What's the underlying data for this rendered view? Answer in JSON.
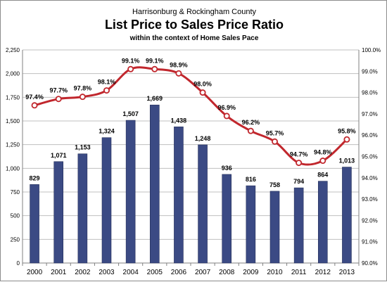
{
  "chart_data": {
    "type": "bar+line",
    "supertitle": "Harrisonburg & Rockingham County",
    "title": "List Price to Sales Price Ratio",
    "subtitle": "within the context of Home Sales Pace",
    "categories": [
      "2000",
      "2001",
      "2002",
      "2003",
      "2004",
      "2005",
      "2006",
      "2007",
      "2008",
      "2009",
      "2010",
      "2011",
      "2012",
      "2013"
    ],
    "series": [
      {
        "type": "bar",
        "axis": "left",
        "values": [
          829,
          1071,
          1153,
          1324,
          1507,
          1669,
          1438,
          1248,
          936,
          816,
          758,
          794,
          864,
          1013
        ],
        "labels": [
          "829",
          "1,071",
          "1,153",
          "1,324",
          "1,507",
          "1,669",
          "1,438",
          "1,248",
          "936",
          "816",
          "758",
          "794",
          "864",
          "1,013"
        ],
        "color": "#3b4a84"
      },
      {
        "type": "line",
        "axis": "right",
        "values": [
          97.4,
          97.7,
          97.8,
          98.1,
          99.1,
          99.1,
          98.9,
          98.0,
          96.9,
          96.2,
          95.7,
          94.7,
          94.8,
          95.8
        ],
        "labels": [
          "97.4%",
          "97.7%",
          "97.8%",
          "98.1%",
          "99.1%",
          "99.1%",
          "98.9%",
          "98.0%",
          "96.9%",
          "96.2%",
          "95.7%",
          "94.7%",
          "94.8%",
          "95.8%"
        ],
        "color": "#c1272d",
        "smooth": true
      }
    ],
    "y_left": {
      "lim": [
        0,
        2250
      ],
      "ticks": [
        0,
        250,
        500,
        750,
        1000,
        1250,
        1500,
        1750,
        2000,
        2250
      ],
      "tick_labels": [
        "0",
        "250",
        "500",
        "750",
        "1,000",
        "1,250",
        "1,500",
        "1,750",
        "2,000",
        "2,250"
      ]
    },
    "y_right": {
      "lim": [
        90.0,
        100.0
      ],
      "ticks": [
        90,
        91,
        92,
        93,
        94,
        95,
        96,
        97,
        98,
        99,
        100
      ],
      "tick_labels": [
        "90.0%",
        "91.0%",
        "92.0%",
        "93.0%",
        "94.0%",
        "95.0%",
        "96.0%",
        "97.0%",
        "98.0%",
        "99.0%",
        "100.0%"
      ]
    },
    "grid": true,
    "legend": "none"
  }
}
